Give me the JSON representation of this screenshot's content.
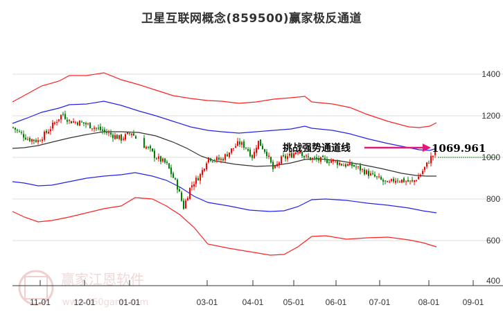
{
  "title": "卫星互联网概念(859500)赢家极反通道",
  "watermark": {
    "brand": "赢家江恩软件",
    "url": "www.360gann.com",
    "logo_chars": [
      "江",
      "赢",
      "恩",
      "家"
    ]
  },
  "annotation": {
    "label": "挑战强势通道线",
    "value": "1069.961",
    "arrow_color": "#e0187a"
  },
  "colors": {
    "outer_band": "#ff2020",
    "inner_band": "#2222ee",
    "middle_line": "#333333",
    "up_candle": "#ff0000",
    "down_candle": "#008000",
    "grid": "#dddddd",
    "last_price_line": "#008000"
  },
  "chart_data": {
    "type": "candlestick",
    "title": "卫星互联网概念(859500)赢家极反通道",
    "xlabel": "",
    "ylabel": "",
    "ylim": [
      400,
      1500
    ],
    "grid": "horizontal",
    "yticks": [
      400,
      600,
      800,
      1000,
      1200,
      1400
    ],
    "xticks": [
      "11-01",
      "12-01",
      "01-01",
      "03-01",
      "04-01",
      "05-01",
      "06-01",
      "07-01",
      "08-01",
      "09-01"
    ],
    "last_price": 1020,
    "annotation": {
      "text": "挑战强势通道线",
      "value": 1069.961
    },
    "series": [
      {
        "name": "outer_upper",
        "color": "#ff2020",
        "x": [
          "10-22",
          "11-15",
          "12-01",
          "12-20",
          "01-10",
          "02-01",
          "03-01",
          "04-01",
          "05-01",
          "05-15",
          "06-01",
          "07-01",
          "08-01",
          "08-10"
        ],
        "values": [
          1300,
          1375,
          1400,
          1425,
          1395,
          1340,
          1290,
          1270,
          1300,
          1315,
          1295,
          1240,
          1175,
          1190
        ]
      },
      {
        "name": "inner_upper",
        "color": "#2222ee",
        "x": [
          "10-22",
          "11-15",
          "12-01",
          "12-20",
          "01-10",
          "02-01",
          "03-01",
          "04-01",
          "05-01",
          "05-15",
          "06-01",
          "07-01",
          "08-01",
          "08-10"
        ],
        "values": [
          1130,
          1185,
          1210,
          1245,
          1220,
          1170,
          1110,
          1090,
          1120,
          1155,
          1130,
          1090,
          1065,
          1070
        ]
      },
      {
        "name": "middle",
        "color": "#333333",
        "x": [
          "10-22",
          "11-15",
          "12-01",
          "12-20",
          "01-10",
          "02-01",
          "03-01",
          "04-01",
          "05-01",
          "05-15",
          "06-01",
          "07-01",
          "08-01",
          "08-10"
        ],
        "values": [
          1065,
          1085,
          1130,
          1155,
          1150,
          1100,
          1000,
          975,
          1000,
          1010,
          1000,
          960,
          930,
          933
        ]
      },
      {
        "name": "inner_lower",
        "color": "#2222ee",
        "x": [
          "10-22",
          "11-15",
          "12-01",
          "12-20",
          "01-10",
          "02-01",
          "03-01",
          "04-01",
          "05-01",
          "05-15",
          "06-01",
          "07-01",
          "08-01",
          "08-10"
        ],
        "values": [
          900,
          880,
          905,
          945,
          960,
          900,
          800,
          755,
          790,
          815,
          810,
          800,
          760,
          755
        ]
      },
      {
        "name": "outer_lower",
        "color": "#ff2020",
        "x": [
          "10-22",
          "11-15",
          "12-01",
          "12-20",
          "01-10",
          "02-01",
          "03-01",
          "04-01",
          "05-01",
          "05-15",
          "06-01",
          "07-01",
          "08-01",
          "08-10"
        ],
        "values": [
          760,
          700,
          730,
          775,
          810,
          750,
          610,
          550,
          560,
          610,
          620,
          615,
          610,
          590
        ]
      },
      {
        "name": "price_close_approx",
        "x": [
          "10-22",
          "11-01",
          "11-15",
          "12-01",
          "12-15",
          "01-01",
          "01-20",
          "02-01",
          "02-10",
          "03-01",
          "03-15",
          "04-01",
          "04-10",
          "05-01",
          "05-15",
          "06-01",
          "06-15",
          "07-01",
          "07-15",
          "08-01",
          "08-10"
        ],
        "values": [
          1145,
          1080,
          1120,
          1200,
          1160,
          1100,
          990,
          930,
          760,
          880,
          1000,
          1080,
          920,
          1000,
          1040,
          990,
          950,
          880,
          900,
          960,
          1020
        ]
      }
    ]
  }
}
